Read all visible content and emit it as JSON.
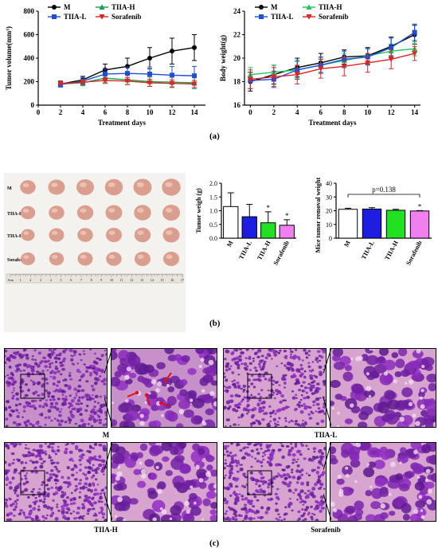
{
  "panels": {
    "a": {
      "label": "(a)"
    },
    "b": {
      "label": "(b)"
    },
    "c": {
      "label": "(c)"
    }
  },
  "chart_data": [
    {
      "type": "line",
      "xlabel": "Treatment days",
      "ylabel": "Tumor volume(mm³)",
      "x": [
        2,
        4,
        6,
        8,
        10,
        12,
        14
      ],
      "xticks": [
        0,
        2,
        4,
        6,
        8,
        10,
        12,
        14
      ],
      "xlim": [
        0,
        15
      ],
      "yticks": [
        0,
        200,
        400,
        600,
        800
      ],
      "ylim": [
        0,
        800
      ],
      "legend": "top-left",
      "series": [
        {
          "name": "M",
          "color": "#000000",
          "marker": "circle",
          "values": [
            180,
            215,
            300,
            330,
            400,
            460,
            490
          ],
          "err": [
            25,
            30,
            50,
            70,
            90,
            110,
            110
          ]
        },
        {
          "name": "TIIA-H",
          "color": "#16a34a",
          "marker": "triangle-up",
          "values": [
            180,
            190,
            230,
            215,
            200,
            195,
            190
          ],
          "err": [
            20,
            25,
            35,
            40,
            40,
            45,
            50
          ]
        },
        {
          "name": "TIIA-L",
          "color": "#1d4ed8",
          "marker": "square",
          "values": [
            175,
            205,
            265,
            270,
            265,
            255,
            250
          ],
          "err": [
            20,
            30,
            45,
            55,
            60,
            75,
            80
          ]
        },
        {
          "name": "Sorafenib",
          "color": "#dc2626",
          "marker": "triangle-down",
          "values": [
            185,
            195,
            210,
            205,
            190,
            185,
            180
          ],
          "err": [
            15,
            20,
            25,
            30,
            30,
            30,
            30
          ]
        }
      ]
    },
    {
      "type": "line",
      "xlabel": "Treatment days",
      "ylabel": "Body weight(g)",
      "x": [
        0,
        2,
        4,
        6,
        8,
        10,
        12,
        14
      ],
      "xticks": [
        0,
        2,
        4,
        6,
        8,
        10,
        12,
        14
      ],
      "xlim": [
        -0.5,
        14.5
      ],
      "yticks": [
        16,
        18,
        20,
        22,
        24
      ],
      "ylim": [
        16,
        24
      ],
      "legend": "top-left",
      "series": [
        {
          "name": "M",
          "color": "#000000",
          "marker": "circle",
          "values": [
            18.0,
            18.6,
            19.2,
            19.6,
            20.1,
            20.2,
            21.0,
            22.0
          ],
          "err": [
            0.8,
            0.8,
            0.8,
            0.8,
            0.6,
            0.7,
            0.8,
            0.8
          ]
        },
        {
          "name": "TIIA-H",
          "color": "#22c55e",
          "marker": "triangle-up",
          "values": [
            18.6,
            18.8,
            19.0,
            19.4,
            19.8,
            20.2,
            20.6,
            20.8
          ],
          "err": [
            0.6,
            0.6,
            0.7,
            0.6,
            0.6,
            0.6,
            0.6,
            0.6
          ]
        },
        {
          "name": "TIIA-L",
          "color": "#1d4ed8",
          "marker": "square",
          "values": [
            18.1,
            18.2,
            19.0,
            19.4,
            19.9,
            20.1,
            20.9,
            22.2
          ],
          "err": [
            0.7,
            0.7,
            0.8,
            0.7,
            0.7,
            0.7,
            0.8,
            0.7
          ]
        },
        {
          "name": "Sorafenib",
          "color": "#dc2626",
          "marker": "triangle-down",
          "values": [
            18.2,
            18.4,
            18.6,
            19.1,
            19.3,
            19.6,
            19.9,
            20.4
          ],
          "err": [
            0.8,
            0.8,
            0.8,
            0.8,
            0.8,
            0.8,
            0.8,
            0.6
          ]
        }
      ]
    },
    {
      "type": "bar",
      "ylabel": "Tumor weigh (g)",
      "categories": [
        "M",
        "TIIA-L",
        "TIIA-H",
        "Sorafenib"
      ],
      "values": [
        1.15,
        0.78,
        0.56,
        0.47
      ],
      "err": [
        0.5,
        0.45,
        0.4,
        0.2
      ],
      "colors": [
        "#ffffff",
        "#1d1de0",
        "#22e022",
        "#f080f0"
      ],
      "significance": [
        "",
        "",
        "*",
        "*"
      ],
      "yticks": [
        0.0,
        0.5,
        1.0,
        1.5,
        2.0
      ],
      "ytick_labels": [
        "0.0",
        "0.5",
        "1.0",
        "1.5",
        "2.0"
      ],
      "ylim": [
        0,
        2.0
      ]
    },
    {
      "type": "bar",
      "ylabel": "Mice tumor removal weight (g)",
      "categories": [
        "M",
        "TIIA-L",
        "TIIA-H",
        "Sorafenib"
      ],
      "values": [
        21.0,
        21.2,
        20.3,
        19.8
      ],
      "err": [
        0.8,
        1.0,
        0.7,
        0.3
      ],
      "colors": [
        "#ffffff",
        "#1d1de0",
        "#22e022",
        "#f080f0"
      ],
      "significance": [
        "",
        "",
        "",
        "*"
      ],
      "annotation": "p=0.138",
      "yticks": [
        0,
        10,
        20,
        30,
        40
      ],
      "ytick_labels": [
        "0",
        "10",
        "20",
        "30",
        "40"
      ],
      "ylim": [
        0,
        40
      ]
    }
  ],
  "tumor_photo": {
    "row_labels": [
      "M",
      "TIIA-L",
      "TIIA-H",
      "Sorafenib"
    ],
    "ruler_label": "0cm",
    "ruler_numbers": [
      "1",
      "2",
      "3",
      "4",
      "5",
      "6",
      "7",
      "8",
      "9",
      "10",
      "11",
      "12",
      "13",
      "14",
      "15",
      "16",
      "17"
    ],
    "tumor_sizes": [
      [
        0.55,
        0.7,
        0.8,
        0.85,
        0.9,
        0.95
      ],
      [
        0.45,
        0.55,
        0.65,
        0.7,
        0.75,
        0.8
      ],
      [
        0.3,
        0.5,
        0.55,
        0.6,
        0.65,
        0.7
      ],
      [
        0.4,
        0.45,
        0.5,
        0.55,
        0.6,
        0.62
      ]
    ]
  },
  "histology": {
    "captions": [
      "M",
      "TIIA-L",
      "TIIA-H",
      "Sorafenib"
    ]
  }
}
